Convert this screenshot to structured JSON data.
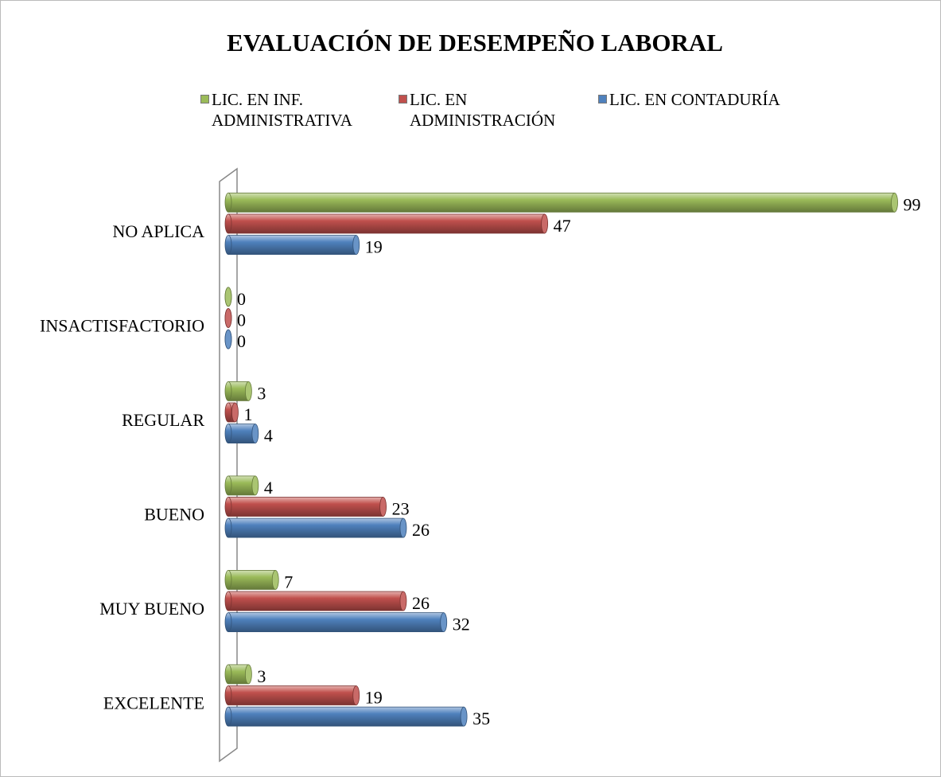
{
  "chart_data": {
    "type": "bar",
    "orientation": "horizontal",
    "title": "EVALUACIÓN DE DESEMPEÑO LABORAL",
    "categories": [
      "NO APLICA",
      "INSACTISFACTORIO",
      "REGULAR",
      "BUENO",
      "MUY BUENO",
      "EXCELENTE"
    ],
    "series": [
      {
        "name": "LIC. EN INF. ADMINISTRATIVA",
        "color": "#9bbb59",
        "values": [
          99,
          0,
          3,
          4,
          7,
          3
        ]
      },
      {
        "name": "LIC. EN ADMINISTRACIÓN",
        "color": "#c0504d",
        "values": [
          47,
          0,
          1,
          23,
          26,
          19
        ]
      },
      {
        "name": "LIC. EN CONTADURÍA",
        "color": "#4f81bd",
        "values": [
          19,
          0,
          4,
          26,
          32,
          35
        ]
      }
    ],
    "xlim": [
      0,
      100
    ],
    "legend": "top"
  }
}
